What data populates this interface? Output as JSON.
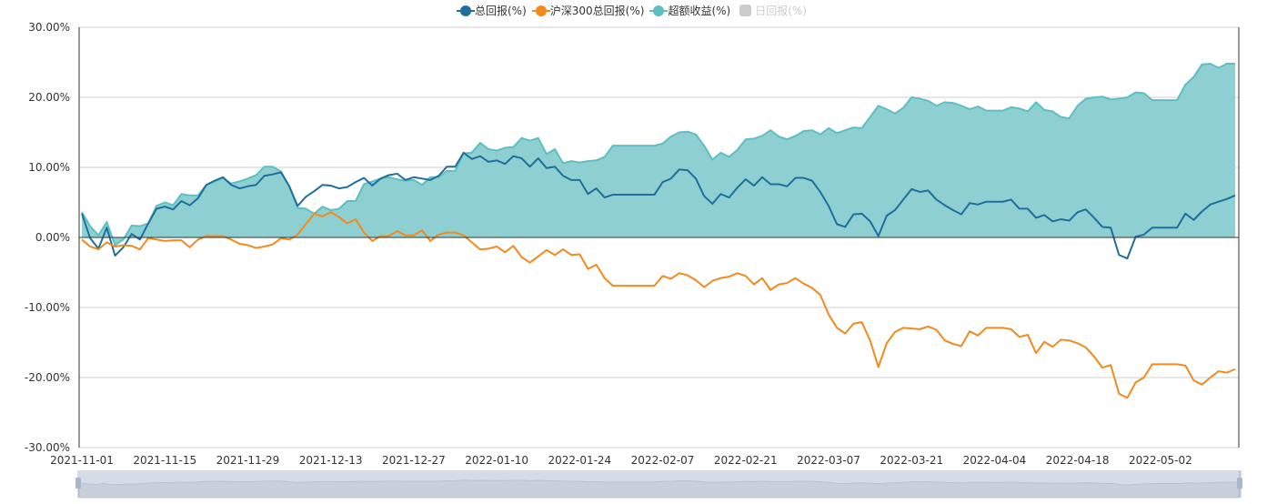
{
  "legend": [
    {
      "label": "总回报(%)",
      "color": "#1f6e9c",
      "active": true
    },
    {
      "label": "沪深300总回报(%)",
      "color": "#f28a1e",
      "active": true
    },
    {
      "label": "超额收益(%)",
      "color": "#5dbfc1",
      "active": true
    },
    {
      "label": "日回报(%)",
      "color": "#cccccc",
      "active": false
    }
  ],
  "chart_data": {
    "type": "line",
    "ylim": [
      -30,
      30
    ],
    "y_ticks": [
      "30.00%",
      "20.00%",
      "10.00%",
      "0.00%",
      "-10.00%",
      "-20.00%",
      "-30.00%"
    ],
    "y_tick_values": [
      30,
      20,
      10,
      0,
      -10,
      -20,
      -30
    ],
    "x_tick_every": 10,
    "x_tick_labels": [
      "2021-11-01",
      "2021-11-15",
      "2021-11-29",
      "2021-12-13",
      "2021-12-27",
      "2022-01-10",
      "2022-01-24",
      "2022-02-07",
      "2022-02-21",
      "2022-03-07",
      "2022-03-21",
      "2022-04-04",
      "2022-04-18",
      "2022-05-02"
    ],
    "grid": true,
    "legend_position": "top-center",
    "series": [
      {
        "name": "总回报(%)",
        "color": "#1f6e9c",
        "values": [
          3.4,
          -0.1,
          -1.6,
          1.4,
          -2.6,
          -1.4,
          0.5,
          -0.3,
          2.0,
          4.1,
          4.4,
          4.0,
          5.2,
          4.6,
          5.6,
          7.5,
          8.1,
          8.6,
          7.5,
          7.0,
          7.3,
          7.5,
          8.8,
          9.0,
          9.3,
          7.3,
          4.5,
          5.8,
          6.6,
          7.5,
          7.4,
          7.0,
          7.2,
          7.9,
          8.5,
          7.4,
          8.4,
          8.9,
          9.1,
          8.2,
          8.6,
          8.4,
          8.2,
          8.8,
          10.1,
          10.1,
          12.1,
          11.2,
          11.6,
          10.8,
          11.0,
          10.5,
          11.6,
          11.3,
          10.1,
          11.3,
          9.9,
          10.1,
          8.8,
          8.2,
          8.2,
          6.2,
          7.0,
          5.7,
          6.1,
          6.1,
          6.1,
          6.1,
          6.1,
          6.1,
          7.9,
          8.4,
          9.7,
          9.6,
          8.4,
          5.9,
          4.8,
          6.2,
          5.7,
          7.1,
          8.3,
          7.4,
          8.6,
          7.6,
          7.6,
          7.3,
          8.5,
          8.5,
          8.1,
          6.5,
          4.5,
          1.9,
          1.5,
          3.3,
          3.4,
          2.3,
          0.2,
          3.1,
          3.9,
          5.4,
          6.9,
          6.5,
          6.7,
          5.4,
          4.6,
          3.9,
          3.3,
          4.9,
          4.7,
          5.1,
          5.1,
          5.1,
          5.4,
          4.1,
          4.1,
          2.8,
          3.2,
          2.3,
          2.6,
          2.4,
          3.6,
          4.0,
          2.8,
          1.5,
          1.4,
          -2.5,
          -3.0,
          0.1,
          0.4,
          1.4,
          1.4,
          1.4,
          1.4,
          3.4,
          2.5,
          3.7,
          4.7,
          5.1,
          5.5,
          6.0
        ]
      },
      {
        "name": "沪深300总回报(%)",
        "color": "#f28a1e",
        "values": [
          -0.3,
          -1.3,
          -1.7,
          -0.7,
          -1.3,
          -1.1,
          -1.2,
          -1.7,
          -0.1,
          -0.3,
          -0.5,
          -0.4,
          -0.4,
          -1.4,
          -0.3,
          0.2,
          0.2,
          0.2,
          -0.3,
          -0.9,
          -1.1,
          -1.5,
          -1.3,
          -1.0,
          -0.1,
          -0.3,
          0.4,
          1.9,
          3.4,
          3.0,
          3.6,
          2.9,
          2.0,
          2.6,
          0.7,
          -0.5,
          0.2,
          0.2,
          0.9,
          0.3,
          0.3,
          1.0,
          -0.5,
          0.4,
          0.7,
          0.7,
          0.3,
          -0.7,
          -1.7,
          -1.6,
          -1.3,
          -2.1,
          -1.2,
          -2.8,
          -3.6,
          -2.7,
          -1.8,
          -2.5,
          -1.7,
          -2.5,
          -2.4,
          -4.5,
          -3.9,
          -5.8,
          -6.9,
          -6.9,
          -6.9,
          -6.9,
          -6.9,
          -6.9,
          -5.5,
          -5.9,
          -5.1,
          -5.4,
          -6.1,
          -7.1,
          -6.2,
          -5.8,
          -5.6,
          -5.1,
          -5.5,
          -6.7,
          -5.8,
          -7.5,
          -6.7,
          -6.5,
          -5.8,
          -6.6,
          -7.2,
          -8.2,
          -11.0,
          -12.9,
          -13.7,
          -12.3,
          -12.1,
          -14.7,
          -18.5,
          -15.1,
          -13.5,
          -12.9,
          -13.0,
          -13.1,
          -12.7,
          -13.2,
          -14.7,
          -15.2,
          -15.5,
          -13.4,
          -14.0,
          -12.9,
          -12.9,
          -12.9,
          -13.1,
          -14.2,
          -13.9,
          -16.5,
          -14.9,
          -15.6,
          -14.6,
          -14.7,
          -15.1,
          -15.7,
          -17.0,
          -18.6,
          -18.2,
          -22.3,
          -22.9,
          -20.7,
          -20.0,
          -18.1,
          -18.1,
          -18.1,
          -18.1,
          -18.3,
          -20.4,
          -21.0,
          -20.0,
          -19.1,
          -19.3,
          -18.8
        ]
      },
      {
        "name": "超额收益(%)",
        "color": "#5dbfc1",
        "fill": "#8ed0d2",
        "area": true,
        "values": [
          3.6,
          1.6,
          0.3,
          2.2,
          -1.1,
          -0.3,
          1.7,
          1.6,
          2.0,
          4.5,
          5.0,
          4.6,
          6.2,
          6.0,
          6.0,
          7.5,
          8.0,
          8.5,
          7.7,
          8.0,
          8.4,
          8.9,
          10.1,
          10.1,
          9.4,
          7.3,
          4.2,
          4.1,
          3.4,
          4.4,
          3.9,
          4.1,
          5.2,
          5.2,
          7.6,
          8.0,
          8.4,
          8.6,
          8.3,
          8.1,
          8.2,
          7.5,
          8.6,
          8.6,
          9.5,
          9.5,
          12.0,
          12.1,
          13.5,
          12.6,
          12.4,
          12.8,
          12.9,
          14.2,
          13.8,
          14.2,
          11.9,
          12.6,
          10.6,
          10.9,
          10.7,
          10.9,
          11.0,
          11.5,
          13.1,
          13.1,
          13.1,
          13.1,
          13.1,
          13.1,
          13.4,
          14.4,
          15.0,
          15.1,
          14.7,
          13.1,
          11.1,
          12.1,
          11.5,
          12.5,
          14.0,
          14.1,
          14.5,
          15.3,
          14.4,
          14.0,
          14.5,
          15.2,
          15.3,
          14.7,
          15.6,
          14.9,
          15.3,
          15.7,
          15.6,
          17.2,
          18.8,
          18.3,
          17.7,
          18.5,
          20.0,
          19.8,
          19.5,
          18.8,
          19.3,
          19.2,
          18.8,
          18.3,
          18.7,
          18.1,
          18.1,
          18.1,
          18.6,
          18.4,
          18.0,
          19.3,
          18.2,
          18.0,
          17.2,
          17.0,
          18.8,
          19.8,
          20.0,
          20.1,
          19.7,
          19.8,
          20.0,
          20.7,
          20.6,
          19.6,
          19.6,
          19.6,
          19.6,
          21.8,
          22.9,
          24.7,
          24.8,
          24.2,
          24.8,
          24.8
        ]
      }
    ]
  }
}
